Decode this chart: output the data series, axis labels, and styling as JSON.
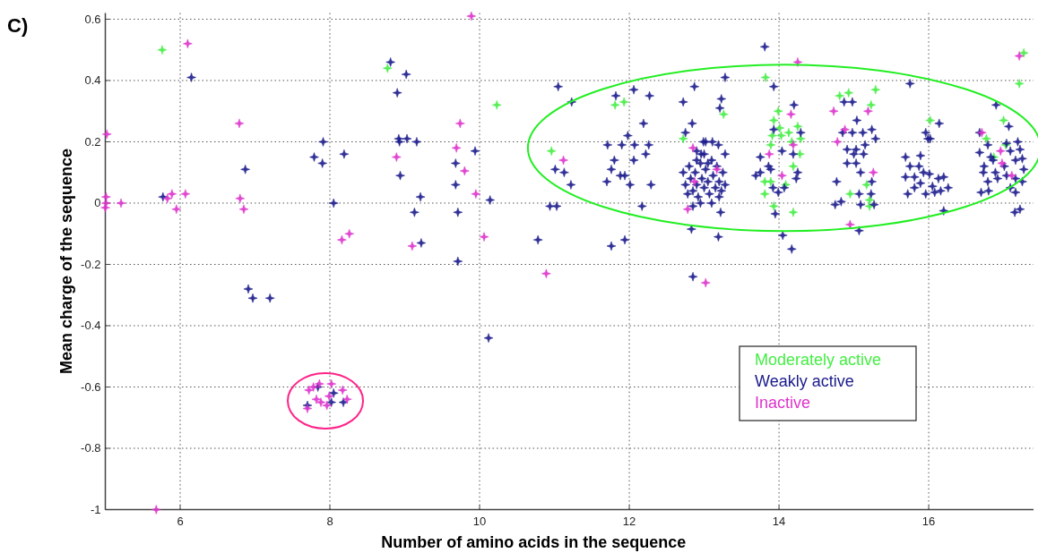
{
  "chart_data": {
    "type": "scatter",
    "title": "C)",
    "xlabel": "Number of amino acids in the sequence",
    "ylabel": "Mean charge of the sequence",
    "xlim": [
      5,
      17.4
    ],
    "xticks": [
      6,
      8,
      10,
      12,
      14,
      16
    ],
    "ylim": [
      -1,
      0.62
    ],
    "yticks": [
      -1,
      -0.8,
      -0.6,
      -0.4,
      -0.2,
      0,
      0.2,
      0.4,
      0.6
    ],
    "grid": true,
    "legend": "bottom right",
    "marker": "star",
    "series": [
      {
        "name": "Moderately active",
        "color": "#44ee44",
        "x": [
          5.76,
          8.77,
          10.23,
          10.96,
          11.81,
          11.93,
          12.72,
          13.26,
          13.82,
          13.99,
          13.93,
          14.01,
          14.13,
          14.25,
          13.91,
          14.03,
          14.17,
          14.29,
          14.28,
          13.89,
          14.19,
          13.81,
          13.89,
          14.09,
          13.81,
          13.93,
          14.19,
          14.81,
          14.93,
          15.29,
          15.23,
          15.17,
          14.95,
          15.21,
          15.21,
          16.02,
          17.0,
          16.77,
          16.87,
          17.21,
          17.27,
          17.03
        ],
        "values": [
          0.5,
          0.44,
          0.32,
          0.17,
          0.32,
          0.33,
          0.21,
          0.29,
          0.41,
          0.3,
          0.27,
          0.245,
          0.23,
          0.25,
          0.22,
          0.22,
          0.2,
          0.21,
          0.16,
          0.19,
          0.12,
          0.07,
          0.07,
          0.06,
          0.03,
          -0.01,
          -0.03,
          0.35,
          0.36,
          0.37,
          0.32,
          0.06,
          0.03,
          0.01,
          -0.01,
          0.27,
          0.27,
          0.21,
          0.15,
          0.39,
          0.49,
          0.19
        ]
      },
      {
        "name": "Weakly active",
        "color": "#1a1a8c",
        "x": [
          6.15,
          5.77,
          6.87,
          7.79,
          7.91,
          7.9,
          8.19,
          8.05,
          8.81,
          8.9,
          8.93,
          8.94,
          6.91,
          6.97,
          7.2,
          9.71,
          10.12,
          8.05,
          8.02,
          8.18,
          7.84,
          7.7,
          9.02,
          8.92,
          9.03,
          9.16,
          9.21,
          9.13,
          9.22,
          9.68,
          9.68,
          9.71,
          9.94,
          10.14,
          10.78,
          11.05,
          11.23,
          11.01,
          11.13,
          11.22,
          10.94,
          11.03,
          11.76,
          11.94,
          11.82,
          12.06,
          12.27,
          12.19,
          11.98,
          11.71,
          11.9,
          12.07,
          12.26,
          12.22,
          12.06,
          11.8,
          11.76,
          11.7,
          11.88,
          11.94,
          12.01,
          12.29,
          12.17,
          12.87,
          12.72,
          12.84,
          12.75,
          13.02,
          12.9,
          12.96,
          12.83,
          12.85,
          12.72,
          12.75,
          12.78,
          12.8,
          12.82,
          12.85,
          12.88,
          12.9,
          12.92,
          12.95,
          12.97,
          13.0,
          13.02,
          13.05,
          13.07,
          13.1,
          13.12,
          13.15,
          13.17,
          13.2,
          13.23,
          13.25,
          13.28,
          13.0,
          12.9,
          13.1,
          12.85,
          13.2,
          12.95,
          13.05,
          13.28,
          13.23,
          13.21,
          12.99,
          13.11,
          13.19,
          13.28,
          13.22,
          13.19,
          13.81,
          13.93,
          14.2,
          13.93,
          14.29,
          14.04,
          14.19,
          13.75,
          13.86,
          13.89,
          13.69,
          13.75,
          13.92,
          13.99,
          14.07,
          14.23,
          14.25,
          13.95,
          14.05,
          14.17,
          14.87,
          14.98,
          15.04,
          14.85,
          14.98,
          15.12,
          15.24,
          15.29,
          14.91,
          15.03,
          15.15,
          15.0,
          15.13,
          14.91,
          15.03,
          15.09,
          15.24,
          14.77,
          15.07,
          15.23,
          14.75,
          14.83,
          15.09,
          15.27,
          15.07,
          15.75,
          16.14,
          15.96,
          15.99,
          16.02,
          15.69,
          15.89,
          15.75,
          15.87,
          15.69,
          15.81,
          15.93,
          16.01,
          16.13,
          16.2,
          15.72,
          15.81,
          15.96,
          16.08,
          16.16,
          16.26,
          15.89,
          16.05,
          16.2,
          16.9,
          17.07,
          16.68,
          16.79,
          17.04,
          17.19,
          16.68,
          16.83,
          17.09,
          17.22,
          16.74,
          16.86,
          17.16,
          17.25,
          16.73,
          16.89,
          17.01,
          17.27,
          16.79,
          16.92,
          17.04,
          17.16,
          17.25,
          16.7,
          16.8,
          17.09,
          17.16,
          17.15,
          17.22
        ],
        "values": [
          0.41,
          0.02,
          0.11,
          0.15,
          0.2,
          0.13,
          0.16,
          0.0,
          0.46,
          0.36,
          0.2,
          0.09,
          -0.28,
          -0.31,
          -0.31,
          -0.19,
          -0.44,
          -0.62,
          -0.65,
          -0.65,
          -0.6,
          -0.66,
          0.42,
          0.21,
          0.21,
          0.2,
          0.02,
          -0.03,
          -0.13,
          0.13,
          0.06,
          -0.03,
          0.17,
          0.01,
          -0.12,
          0.38,
          0.33,
          0.11,
          0.1,
          0.06,
          -0.01,
          -0.01,
          -0.14,
          -0.12,
          0.35,
          0.37,
          0.35,
          0.26,
          0.22,
          0.19,
          0.19,
          0.19,
          0.19,
          0.16,
          0.14,
          0.14,
          0.11,
          0.07,
          0.09,
          0.09,
          0.06,
          0.06,
          -0.01,
          0.38,
          0.33,
          0.26,
          0.23,
          0.2,
          0.14,
          0.16,
          -0.085,
          -0.24,
          0.1,
          0.06,
          0.03,
          0.12,
          0.08,
          0.04,
          0.1,
          0.06,
          0.02,
          0.13,
          0.08,
          0.05,
          0.11,
          0.07,
          0.03,
          0.14,
          0.09,
          0.05,
          0.12,
          0.07,
          0.04,
          0.1,
          0.06,
          0.16,
          0.17,
          0.0,
          -0.01,
          0.02,
          0.0,
          0.13,
          0.41,
          0.34,
          0.31,
          0.2,
          0.2,
          0.19,
          0.16,
          -0.03,
          -0.11,
          0.51,
          0.38,
          0.32,
          0.24,
          0.23,
          0.17,
          0.16,
          0.15,
          0.12,
          0.11,
          0.09,
          0.1,
          0.05,
          0.035,
          0.05,
          0.08,
          0.1,
          -0.035,
          -0.105,
          -0.15,
          0.33,
          0.33,
          0.27,
          0.23,
          0.23,
          0.23,
          0.24,
          0.21,
          0.175,
          0.175,
          0.19,
          0.16,
          0.16,
          0.13,
          0.13,
          0.1,
          0.07,
          0.07,
          0.03,
          0.03,
          -0.005,
          0.005,
          -0.005,
          -0.005,
          -0.09,
          0.39,
          0.26,
          0.23,
          0.21,
          0.21,
          0.15,
          0.155,
          0.12,
          0.12,
          0.085,
          0.085,
          0.1,
          0.095,
          0.08,
          0.085,
          0.03,
          0.05,
          0.03,
          0.035,
          0.04,
          0.05,
          0.065,
          0.055,
          -0.025,
          0.32,
          0.25,
          0.23,
          0.19,
          0.195,
          0.2,
          0.165,
          0.15,
          0.17,
          0.175,
          0.12,
          0.14,
          0.14,
          0.145,
          0.1,
          0.1,
          0.12,
          0.11,
          0.07,
          0.08,
          0.09,
          0.08,
          0.07,
          0.035,
          0.04,
          0.05,
          0.035,
          -0.03,
          -0.02
        ]
      },
      {
        "name": "Inactive",
        "color": "#dd33cc",
        "x": [
          5.02,
          5.01,
          5.01,
          5.0,
          5.21,
          5.83,
          5.89,
          5.95,
          6.07,
          6.1,
          6.79,
          6.8,
          6.85,
          8.16,
          8.26,
          8.89,
          9.89,
          9.74,
          9.69,
          9.8,
          9.95,
          9.1,
          10.06,
          10.89,
          11.12,
          13.02,
          12.85,
          12.87,
          12.78,
          14.25,
          13.17,
          13.87,
          14.16,
          14.04,
          14.19,
          14.73,
          14.88,
          14.78,
          15.19,
          15.26,
          14.95,
          16.71,
          16.96,
          16.98,
          17.11,
          17.21,
          7.72,
          7.78,
          7.86,
          7.82,
          7.88,
          7.96,
          7.99,
          8.02,
          8.17,
          8.23,
          7.7,
          5.68
        ],
        "values": [
          0.225,
          0.02,
          0.0,
          -0.015,
          0.0,
          0.015,
          0.03,
          -0.02,
          0.03,
          0.52,
          0.26,
          0.015,
          -0.02,
          -0.12,
          -0.1,
          0.15,
          0.61,
          0.26,
          0.18,
          0.105,
          0.03,
          -0.14,
          -0.11,
          -0.23,
          0.14,
          -0.26,
          0.18,
          0.07,
          -0.02,
          0.46,
          0.11,
          0.16,
          0.29,
          0.09,
          0.19,
          0.3,
          0.24,
          0.2,
          0.3,
          0.1,
          -0.07,
          0.23,
          0.17,
          0.13,
          0.09,
          0.48,
          -0.61,
          -0.6,
          -0.59,
          -0.64,
          -0.65,
          -0.66,
          -0.63,
          -0.59,
          -0.61,
          -0.64,
          -0.67,
          -1.0
        ]
      }
    ]
  }
}
